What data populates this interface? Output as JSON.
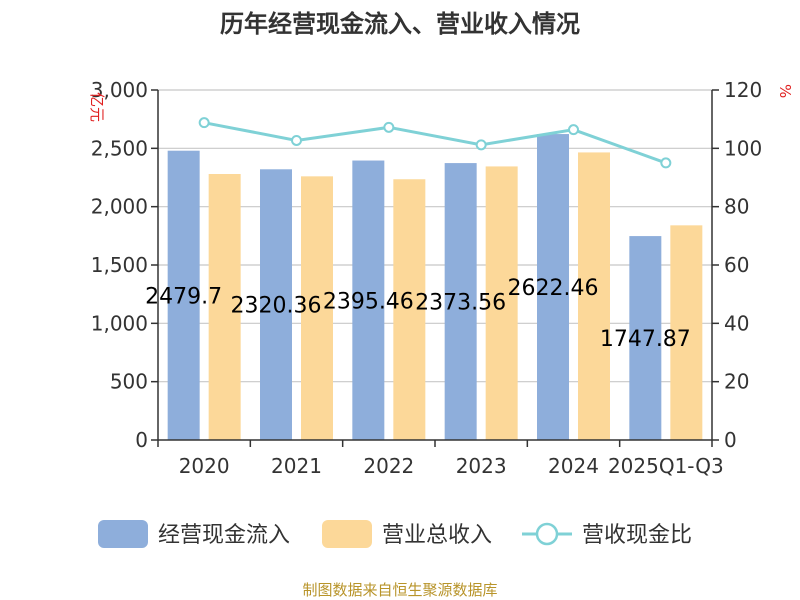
{
  "chart_data": {
    "type": "bar",
    "title": "历年经营现金流入、营业收入情况",
    "categories": [
      "2020",
      "2021",
      "2022",
      "2023",
      "2024",
      "2025Q1-Q3"
    ],
    "series": [
      {
        "name": "经营现金流入",
        "axis": "left",
        "color": "#8eaedb",
        "values": [
          2479.7,
          2320.36,
          2395.46,
          2373.56,
          2622.46,
          1747.87
        ],
        "data_labels": [
          "2479.7",
          "2320.36",
          "2395.46",
          "2373.56",
          "2622.46",
          "1747.87"
        ]
      },
      {
        "name": "营业总收入",
        "axis": "left",
        "color": "#fcd899",
        "values": [
          2280,
          2260,
          2235,
          2345,
          2465,
          1840
        ]
      },
      {
        "name": "营收现金比",
        "axis": "right",
        "type": "line",
        "color": "#7fd1d6",
        "values": [
          108.8,
          102.7,
          107.2,
          101.2,
          106.4,
          95.0
        ]
      }
    ],
    "y_left": {
      "unit": "亿元",
      "ylim": [
        0,
        3000
      ],
      "ticks": [
        "0",
        "500",
        "1,000",
        "1,500",
        "2,000",
        "2,500",
        "3,000"
      ]
    },
    "y_right": {
      "unit": "%",
      "ylim": [
        0,
        120
      ],
      "ticks": [
        "0",
        "20",
        "40",
        "60",
        "80",
        "100",
        "120"
      ]
    },
    "grid": true,
    "legend_position": "bottom"
  },
  "source": "制图数据来自恒生聚源数据库"
}
